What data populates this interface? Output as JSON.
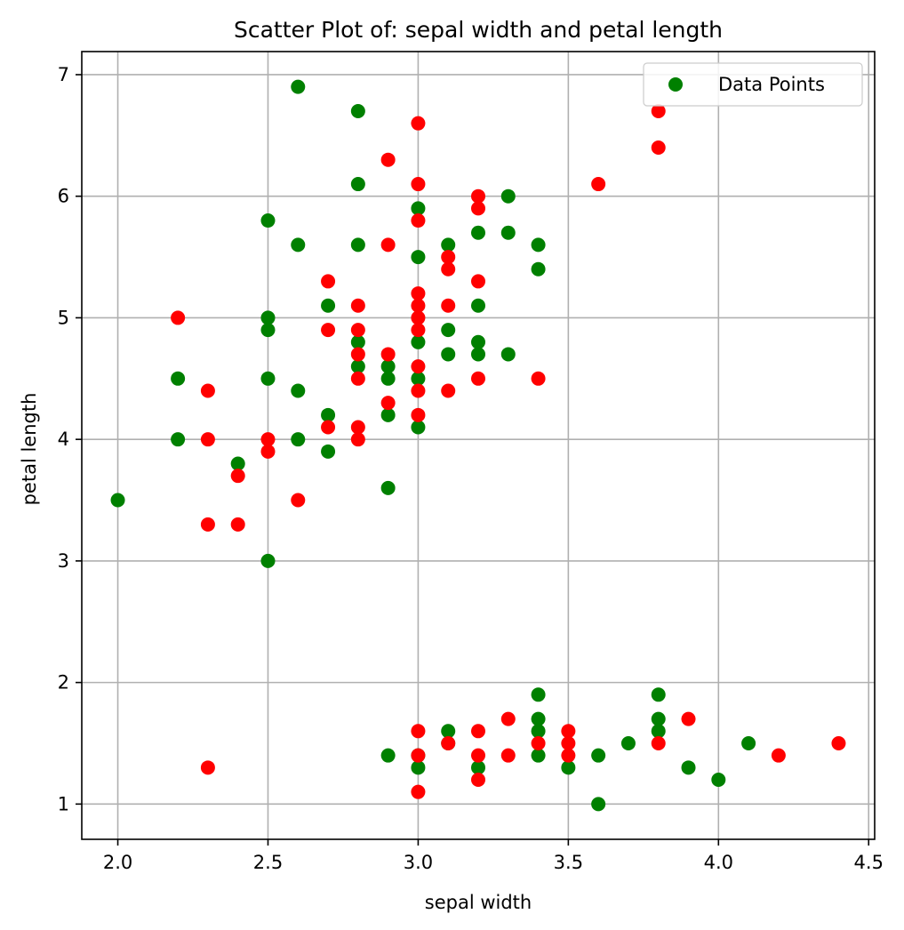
{
  "chart_data": {
    "type": "scatter",
    "title": "Scatter Plot of: sepal width and petal length",
    "xlabel": "sepal width",
    "ylabel": "petal length",
    "xlim": [
      1.88,
      4.52
    ],
    "ylim": [
      0.71,
      7.19
    ],
    "xticks": [
      2.0,
      2.5,
      3.0,
      3.5,
      4.0,
      4.5
    ],
    "xtick_labels": [
      "2.0",
      "2.5",
      "3.0",
      "3.5",
      "4.0",
      "4.5"
    ],
    "yticks": [
      1,
      2,
      3,
      4,
      5,
      6,
      7
    ],
    "ytick_labels": [
      "1",
      "2",
      "3",
      "4",
      "5",
      "6",
      "7"
    ],
    "grid": true,
    "legend": {
      "position": "top-right",
      "label": "Data Points"
    },
    "colors": {
      "green": "#008000",
      "red": "#ff0000",
      "grid": "#b0b0b0"
    },
    "series": [
      {
        "color": "green",
        "points": [
          [
            2.6,
            6.9
          ],
          [
            2.8,
            6.7
          ],
          [
            2.8,
            6.1
          ],
          [
            3.3,
            6.0
          ],
          [
            3.0,
            5.9
          ],
          [
            2.5,
            5.8
          ],
          [
            3.2,
            5.7
          ],
          [
            3.3,
            5.7
          ],
          [
            2.6,
            5.6
          ],
          [
            2.8,
            5.6
          ],
          [
            3.1,
            5.6
          ],
          [
            3.4,
            5.6
          ],
          [
            3.0,
            5.5
          ],
          [
            3.4,
            5.4
          ],
          [
            2.7,
            5.1
          ],
          [
            3.2,
            5.1
          ],
          [
            2.5,
            5.0
          ],
          [
            2.5,
            4.9
          ],
          [
            3.1,
            4.9
          ],
          [
            2.8,
            4.8
          ],
          [
            3.0,
            4.8
          ],
          [
            3.2,
            4.8
          ],
          [
            3.1,
            4.7
          ],
          [
            3.2,
            4.7
          ],
          [
            3.3,
            4.7
          ],
          [
            2.8,
            4.6
          ],
          [
            2.9,
            4.6
          ],
          [
            2.2,
            4.5
          ],
          [
            2.5,
            4.5
          ],
          [
            2.9,
            4.5
          ],
          [
            3.0,
            4.5
          ],
          [
            2.6,
            4.4
          ],
          [
            2.7,
            4.2
          ],
          [
            2.9,
            4.2
          ],
          [
            3.0,
            4.1
          ],
          [
            2.2,
            4.0
          ],
          [
            2.6,
            4.0
          ],
          [
            2.7,
            3.9
          ],
          [
            2.4,
            3.8
          ],
          [
            2.9,
            3.6
          ],
          [
            2.0,
            3.5
          ],
          [
            2.5,
            3.0
          ],
          [
            3.4,
            1.9
          ],
          [
            3.8,
            1.9
          ],
          [
            3.4,
            1.7
          ],
          [
            3.8,
            1.7
          ],
          [
            3.1,
            1.6
          ],
          [
            3.4,
            1.6
          ],
          [
            3.8,
            1.6
          ],
          [
            3.1,
            1.5
          ],
          [
            3.7,
            1.5
          ],
          [
            4.1,
            1.5
          ],
          [
            2.9,
            1.4
          ],
          [
            3.0,
            1.4
          ],
          [
            3.4,
            1.4
          ],
          [
            3.6,
            1.4
          ],
          [
            3.0,
            1.3
          ],
          [
            3.2,
            1.3
          ],
          [
            3.5,
            1.3
          ],
          [
            3.9,
            1.3
          ],
          [
            4.0,
            1.2
          ],
          [
            3.6,
            1.0
          ]
        ]
      },
      {
        "color": "red",
        "points": [
          [
            3.8,
            6.7
          ],
          [
            3.0,
            6.6
          ],
          [
            3.8,
            6.4
          ],
          [
            2.9,
            6.3
          ],
          [
            3.0,
            6.1
          ],
          [
            3.6,
            6.1
          ],
          [
            3.2,
            6.0
          ],
          [
            3.2,
            5.9
          ],
          [
            3.0,
            5.8
          ],
          [
            2.9,
            5.6
          ],
          [
            3.1,
            5.5
          ],
          [
            3.1,
            5.4
          ],
          [
            2.7,
            5.3
          ],
          [
            3.2,
            5.3
          ],
          [
            3.0,
            5.2
          ],
          [
            2.8,
            5.1
          ],
          [
            3.0,
            5.1
          ],
          [
            3.1,
            5.1
          ],
          [
            2.2,
            5.0
          ],
          [
            3.0,
            5.0
          ],
          [
            2.7,
            4.9
          ],
          [
            2.8,
            4.9
          ],
          [
            3.0,
            4.9
          ],
          [
            2.8,
            4.7
          ],
          [
            2.9,
            4.7
          ],
          [
            3.0,
            4.6
          ],
          [
            2.8,
            4.5
          ],
          [
            3.2,
            4.5
          ],
          [
            3.4,
            4.5
          ],
          [
            2.3,
            4.4
          ],
          [
            3.0,
            4.4
          ],
          [
            3.1,
            4.4
          ],
          [
            2.9,
            4.3
          ],
          [
            3.0,
            4.2
          ],
          [
            2.7,
            4.1
          ],
          [
            2.8,
            4.1
          ],
          [
            2.3,
            4.0
          ],
          [
            2.5,
            4.0
          ],
          [
            2.8,
            4.0
          ],
          [
            2.5,
            3.9
          ],
          [
            2.4,
            3.7
          ],
          [
            2.6,
            3.5
          ],
          [
            2.3,
            3.3
          ],
          [
            2.4,
            3.3
          ],
          [
            3.3,
            1.7
          ],
          [
            3.9,
            1.7
          ],
          [
            3.0,
            1.6
          ],
          [
            3.2,
            1.6
          ],
          [
            3.5,
            1.6
          ],
          [
            3.1,
            1.5
          ],
          [
            3.4,
            1.5
          ],
          [
            3.5,
            1.5
          ],
          [
            3.8,
            1.5
          ],
          [
            4.4,
            1.5
          ],
          [
            3.0,
            1.4
          ],
          [
            3.2,
            1.4
          ],
          [
            3.3,
            1.4
          ],
          [
            3.5,
            1.4
          ],
          [
            4.2,
            1.4
          ],
          [
            2.3,
            1.3
          ],
          [
            3.2,
            1.2
          ],
          [
            3.0,
            1.1
          ]
        ]
      }
    ]
  }
}
